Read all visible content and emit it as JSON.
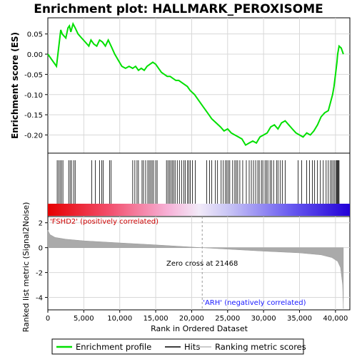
{
  "chart_data": {
    "type": "line",
    "title": "Enrichment plot: HALLMARK_PEROXISOME",
    "top_panel": {
      "ylabel": "Enrichment score (ES)",
      "ylim": [
        -0.245,
        0.09
      ],
      "yticks": [
        0.05,
        0.0,
        -0.05,
        -0.1,
        -0.15,
        -0.2
      ],
      "ytick_labels": [
        "0.05",
        "0.00",
        "-0.05",
        "-0.10",
        "-0.15",
        "-0.20"
      ],
      "series": [
        {
          "name": "Enrichment profile",
          "color": "#00e000",
          "x": [
            0,
            1200,
            1400,
            1600,
            1800,
            2000,
            2500,
            2800,
            3000,
            3200,
            3500,
            3800,
            4200,
            4700,
            5200,
            5700,
            6000,
            6400,
            6800,
            7200,
            7600,
            8000,
            8400,
            8800,
            9300,
            9800,
            10300,
            10800,
            11300,
            11800,
            12200,
            12600,
            13000,
            13400,
            13800,
            14200,
            14600,
            15000,
            15400,
            15800,
            16200,
            16600,
            17000,
            17400,
            17800,
            18200,
            18600,
            19000,
            19400,
            19800,
            20400,
            21000,
            21600,
            22200,
            22800,
            23400,
            24000,
            24500,
            25000,
            25500,
            26000,
            26500,
            27000,
            27500,
            28000,
            28500,
            29000,
            29500,
            30000,
            30500,
            31000,
            31500,
            32000,
            32500,
            33000,
            33500,
            34000,
            34500,
            35000,
            35500,
            36000,
            36500,
            37000,
            37500,
            38000,
            38500,
            39000,
            39300,
            39600,
            39800,
            40000,
            40200,
            40300,
            40500,
            40800,
            41100
          ],
          "y": [
            0.0,
            -0.03,
            0.0,
            0.03,
            0.06,
            0.05,
            0.04,
            0.065,
            0.07,
            0.055,
            0.075,
            0.065,
            0.05,
            0.04,
            0.03,
            0.02,
            0.035,
            0.025,
            0.02,
            0.035,
            0.03,
            0.02,
            0.035,
            0.02,
            0.0,
            -0.015,
            -0.03,
            -0.035,
            -0.03,
            -0.035,
            -0.03,
            -0.04,
            -0.035,
            -0.04,
            -0.03,
            -0.025,
            -0.02,
            -0.025,
            -0.035,
            -0.045,
            -0.05,
            -0.055,
            -0.055,
            -0.06,
            -0.065,
            -0.065,
            -0.07,
            -0.075,
            -0.08,
            -0.09,
            -0.1,
            -0.115,
            -0.13,
            -0.145,
            -0.16,
            -0.17,
            -0.18,
            -0.19,
            -0.185,
            -0.195,
            -0.2,
            -0.205,
            -0.21,
            -0.225,
            -0.22,
            -0.215,
            -0.22,
            -0.205,
            -0.2,
            -0.195,
            -0.18,
            -0.175,
            -0.185,
            -0.17,
            -0.165,
            -0.175,
            -0.185,
            -0.195,
            -0.2,
            -0.205,
            -0.195,
            -0.2,
            -0.19,
            -0.175,
            -0.155,
            -0.145,
            -0.14,
            -0.12,
            -0.1,
            -0.08,
            -0.05,
            -0.02,
            0.0,
            0.02,
            0.015,
            0.0
          ]
        }
      ]
    },
    "hits_panel": {
      "legend_label": "Hits",
      "hit_positions": [
        1300,
        1500,
        1700,
        1900,
        2100,
        2900,
        3100,
        3300,
        3600,
        3800,
        6100,
        6600,
        7200,
        7500,
        7700,
        8600,
        8800,
        11800,
        12100,
        12400,
        12600,
        13100,
        13300,
        13600,
        13900,
        14100,
        14300,
        14500,
        14700,
        15000,
        15200,
        16500,
        16700,
        16900,
        17100,
        17300,
        17500,
        17700,
        18000,
        18300,
        18600,
        18900,
        19100,
        19400,
        19600,
        19800,
        20100,
        20500,
        22100,
        22500,
        22800,
        23300,
        23600,
        24100,
        24400,
        24700,
        24900,
        25100,
        25300,
        25700,
        26000,
        26200,
        26400,
        26700,
        27100,
        27600,
        28000,
        28300,
        28600,
        28900,
        29200,
        29400,
        29700,
        29900,
        30200,
        30400,
        30600,
        30900,
        31100,
        31400,
        31800,
        32000,
        32300,
        32600,
        33000,
        34800,
        35300,
        36000,
        36400,
        36800,
        37100,
        37500,
        37900,
        38300,
        38700,
        39000,
        39300,
        39500,
        39700,
        39900,
        40100,
        40200,
        40300,
        40400,
        40500
      ]
    },
    "bottom_panel": {
      "ylabel": "Ranked list metric (Signal2Noise)",
      "xlabel": "Rank in Ordered Dataset",
      "xlim": [
        0,
        42000
      ],
      "xticks": [
        0,
        5000,
        10000,
        15000,
        20000,
        25000,
        30000,
        35000,
        40000
      ],
      "xtick_labels": [
        "0",
        "5,000",
        "10,000",
        "15,000",
        "20,000",
        "25,000",
        "30,000",
        "35,000",
        "40,000"
      ],
      "ylim": [
        -5,
        2.5
      ],
      "yticks": [
        2,
        0,
        -2,
        -4
      ],
      "ytick_labels": [
        "2",
        "0",
        "-2",
        "-4"
      ],
      "metric_profile": {
        "x": [
          0,
          300,
          1000,
          2500,
          5000,
          10000,
          15000,
          21468,
          25000,
          30000,
          35000,
          38000,
          39500,
          40300,
          40700,
          41000,
          41100
        ],
        "y": [
          1.4,
          1.05,
          0.82,
          0.68,
          0.55,
          0.38,
          0.22,
          0.0,
          -0.12,
          -0.28,
          -0.42,
          -0.58,
          -0.8,
          -1.1,
          -1.6,
          -3.0,
          -4.9
        ]
      },
      "zero_cross_label": "Zero cross at 21468",
      "zero_cross_x": 21468,
      "positive_label": "'FSHD2' (positively correlated)",
      "negative_label": "'ARH' (negatively correlated)"
    },
    "legend": {
      "entries": [
        "Enrichment profile",
        "Hits",
        "Ranking metric scores"
      ]
    }
  }
}
